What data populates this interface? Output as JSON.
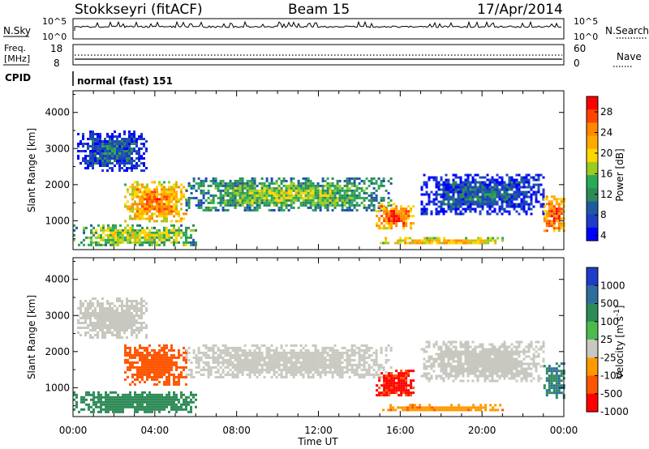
{
  "header": {
    "station": "Stokkseyri (fitACF)",
    "beam": "Beam 15",
    "date": "17/Apr/2014"
  },
  "panel_nsky": {
    "label": "N.Sky",
    "right_label": "N.Search",
    "left_ticks": [
      "10^5",
      "10^0"
    ],
    "right_ticks": [
      "10^5",
      "10^0"
    ]
  },
  "panel_freq": {
    "label_line1": "Freq.",
    "label_line2": "[MHz]",
    "left_ticks": [
      "18",
      "8"
    ],
    "right_label": "Nave",
    "right_ticks": [
      "60",
      "0"
    ]
  },
  "cpid": {
    "label": "CPID",
    "mode_text": "normal (fast) 151"
  },
  "colorbars": {
    "power": {
      "label": "Power [dB]",
      "ticks": [
        "28",
        "24",
        "20",
        "16",
        "12",
        "8",
        "4"
      ],
      "colors": [
        "#ff0000",
        "#ff4400",
        "#ff8800",
        "#ffaa00",
        "#ffd700",
        "#99cc22",
        "#2aaa55",
        "#2e8b57",
        "#1e5aa0",
        "#1e3cc8",
        "#0000ff"
      ]
    },
    "velocity": {
      "label": "Velocity [m s",
      "label_sup": "-1",
      "label_end": "]",
      "ticks": [
        "1000",
        "500",
        "100",
        "25",
        "-25",
        "-100",
        "-500",
        "-1000"
      ],
      "colors": [
        "#1e3cc8",
        "#2e6e9e",
        "#2e8b57",
        "#4cbb4c",
        "#c8c8c0",
        "#ff9900",
        "#ff5500",
        "#ff0000"
      ]
    }
  },
  "chart_data": [
    {
      "type": "heatmap",
      "title": "Power",
      "xlabel": "Time UT",
      "ylabel": "Slant Range [km]",
      "xlim": [
        "00:00",
        "24:00"
      ],
      "ylim": [
        200,
        4600
      ],
      "x_ticks": [
        "00:00",
        "04:00",
        "08:00",
        "12:00",
        "16:00",
        "20:00",
        "00:00"
      ],
      "y_ticks": [
        "1000",
        "2000",
        "3000",
        "4000"
      ],
      "regions": [
        {
          "name": "morning-blob",
          "x_range": [
            0.2,
            3.6
          ],
          "y_range": [
            2400,
            3500
          ],
          "value": 8
        },
        {
          "name": "low-layer",
          "x_range": [
            0.0,
            6.0
          ],
          "y_range": [
            300,
            900
          ],
          "value": 16
        },
        {
          "name": "early-band",
          "x_range": [
            2.5,
            5.5
          ],
          "y_range": [
            1000,
            2100
          ],
          "value": 22
        },
        {
          "name": "main-band",
          "x_range": [
            5.5,
            15.5
          ],
          "y_range": [
            1300,
            2200
          ],
          "value": 14
        },
        {
          "name": "afternoon-echo",
          "x_range": [
            14.8,
            16.6
          ],
          "y_range": [
            800,
            1500
          ],
          "value": 24
        },
        {
          "name": "ground-scatter",
          "x_range": [
            15.0,
            21.0
          ],
          "y_range": [
            350,
            550
          ],
          "value": 20
        },
        {
          "name": "evening-band",
          "x_range": [
            17.0,
            23.0
          ],
          "y_range": [
            1200,
            2300
          ],
          "value": 8
        },
        {
          "name": "midnight-echo",
          "x_range": [
            23.0,
            24.0
          ],
          "y_range": [
            700,
            1700
          ],
          "value": 24
        }
      ]
    },
    {
      "type": "heatmap",
      "title": "Velocity",
      "xlabel": "Time UT",
      "ylabel": "Slant Range [km]",
      "xlim": [
        "00:00",
        "24:00"
      ],
      "ylim": [
        200,
        4600
      ],
      "x_ticks": [
        "00:00",
        "04:00",
        "08:00",
        "12:00",
        "16:00",
        "20:00",
        "00:00"
      ],
      "y_ticks": [
        "1000",
        "2000",
        "3000",
        "4000"
      ],
      "regions": [
        {
          "name": "morning-blob",
          "x_range": [
            0.2,
            3.6
          ],
          "y_range": [
            2400,
            3500
          ],
          "value": 0
        },
        {
          "name": "low-layer",
          "x_range": [
            0.0,
            6.0
          ],
          "y_range": [
            300,
            900
          ],
          "value": 150
        },
        {
          "name": "early-band",
          "x_range": [
            2.5,
            5.5
          ],
          "y_range": [
            1100,
            2200
          ],
          "value": -400
        },
        {
          "name": "main-band",
          "x_range": [
            5.5,
            15.5
          ],
          "y_range": [
            1300,
            2200
          ],
          "value": 0
        },
        {
          "name": "afternoon-echo",
          "x_range": [
            14.8,
            16.6
          ],
          "y_range": [
            800,
            1500
          ],
          "value": -700
        },
        {
          "name": "ground-scatter",
          "x_range": [
            15.0,
            21.0
          ],
          "y_range": [
            350,
            550
          ],
          "value": -150
        },
        {
          "name": "evening-band",
          "x_range": [
            17.0,
            23.0
          ],
          "y_range": [
            1200,
            2300
          ],
          "value": 0
        },
        {
          "name": "midnight-echo",
          "x_range": [
            23.0,
            24.0
          ],
          "y_range": [
            700,
            1700
          ],
          "value": 300
        }
      ]
    }
  ]
}
